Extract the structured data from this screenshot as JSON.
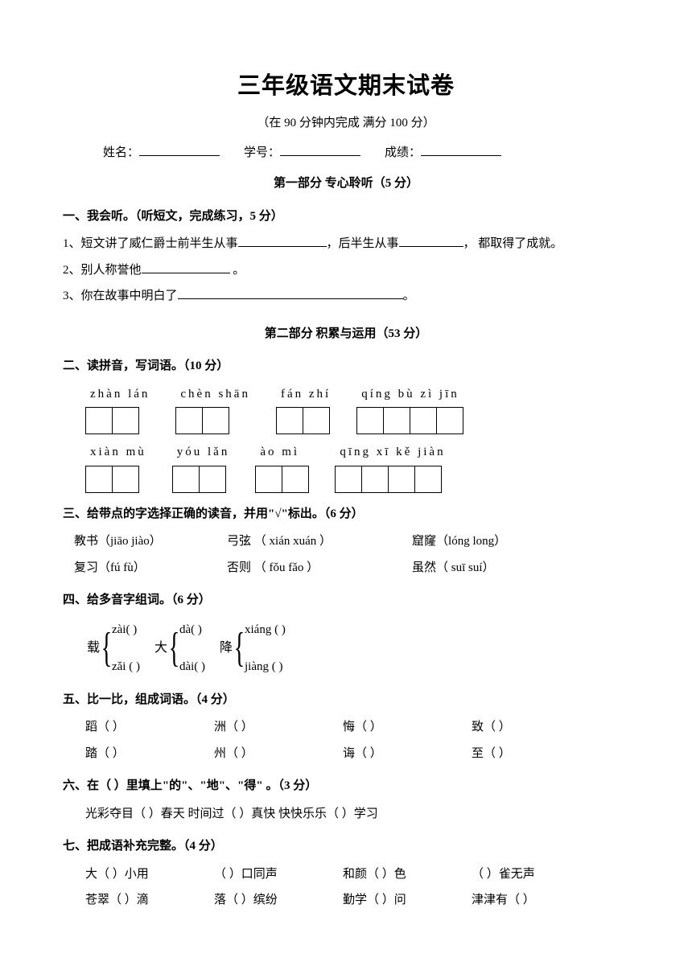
{
  "title": "三年级语文期末试卷",
  "subtitle": "（在 90 分钟内完成 满分 100 分）",
  "info": {
    "name_label": "姓名：",
    "id_label": "学号：",
    "score_label": "成绩："
  },
  "part1": {
    "heading": "第一部分  专心聆听（5 分）",
    "q1": {
      "head": "一、我会听。（听短文，完成练习，5 分）",
      "l1a": "1、短文讲了威仁爵士前半生从事",
      "l1b": "，后半生从事",
      "l1c": "， 都取得了成就。",
      "l2a": "2、别人称誉他",
      "l2b": " 。",
      "l3a": "3、你在故事中明白了",
      "l3b": "。"
    }
  },
  "part2": {
    "heading": "第二部分  积累与运用（53 分）",
    "q2": {
      "head": "二、读拼音，写词语。（10 分）",
      "row1": [
        {
          "pinyin": "zhàn  lán",
          "cells": 2
        },
        {
          "pinyin": "chèn  shān",
          "cells": 2
        },
        {
          "pinyin": "fán   zhí",
          "cells": 2
        },
        {
          "pinyin": "qíng  bù   zì   jīn",
          "cells": 4
        }
      ],
      "row2": [
        {
          "pinyin": "xiàn  mù",
          "cells": 2
        },
        {
          "pinyin": "yóu   lǎn",
          "cells": 2
        },
        {
          "pinyin": "ào    mì",
          "cells": 2
        },
        {
          "pinyin": "qīng  xī  kě   jiàn",
          "cells": 4
        }
      ]
    },
    "q3": {
      "head": "三、给带点的字选择正确的读音，并用\"√\"标出。（6 分）",
      "row1": [
        {
          "char": "教",
          "rest": "书（jiāo  jiào）"
        },
        {
          "char": "弦",
          "pre": "弓",
          "rest": " （ xián  xuán ）"
        },
        {
          "char": "窿",
          "pre": "窟",
          "rest": "（lóng     long）"
        }
      ],
      "row2": [
        {
          "char": "复",
          "rest": "习（fú     fù）"
        },
        {
          "char": "否",
          "rest": "则 （ fǒu   fǎo ）"
        },
        {
          "char": "虽",
          "rest": "然（ suī     suí）"
        }
      ]
    },
    "q4": {
      "head": "四、给多音字组词。（6 分）",
      "groups": [
        {
          "char": "载",
          "top": "zài(      )",
          "bot": "zǎi (     )"
        },
        {
          "char": "大",
          "top": "dà(      )",
          "bot": "dài(     )"
        },
        {
          "char": "降",
          "top": "xiáng (    )",
          "bot": "jiàng (    )"
        }
      ]
    },
    "q5": {
      "head": "五、比一比，组成词语。（4 分）",
      "row1": [
        "蹈（       ）",
        "洲（       ）",
        "悔（       ）",
        "致（       ）"
      ],
      "row2": [
        "踏（       ）",
        "州（       ）",
        "诲（       ）",
        "至（       ）"
      ]
    },
    "q6": {
      "head": "六、在（      ）里填上\"的\"、\"地\"、\"得\" 。（3 分）",
      "line": "光彩夺目（      ）春天     时间过（     ）真快     快快乐乐（    ）学习"
    },
    "q7": {
      "head": "七、把成语补充完整。（4 分）",
      "row1": [
        "大（    ）小用",
        "（    ）口同声",
        "和颜（    ）色",
        "（    ）雀无声"
      ],
      "row2": [
        "苍翠（    ）滴",
        "落（    ）缤纷",
        "勤学（    ）问",
        "津津有（    ）"
      ]
    }
  }
}
